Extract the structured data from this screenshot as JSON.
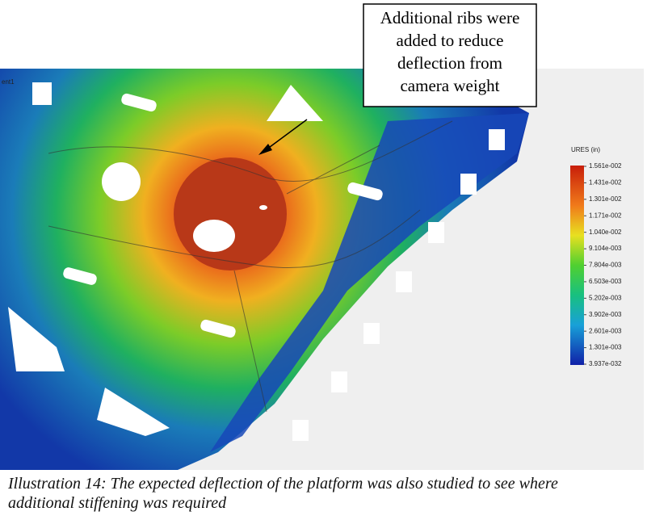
{
  "figure": {
    "view_label": "ent1",
    "callout": [
      "Additional ribs were",
      "added to reduce",
      "deflection from",
      "camera weight"
    ],
    "legend": {
      "title": "URES (in)",
      "labels": [
        "1.561e-002",
        "1.431e-002",
        "1.301e-002",
        "1.171e-002",
        "1.040e-002",
        "9.104e-003",
        "7.804e-003",
        "6.503e-003",
        "5.202e-003",
        "3.902e-003",
        "2.601e-003",
        "1.301e-003",
        "3.937e-032"
      ]
    }
  },
  "caption": [
    "Illustration 14: The expected deflection of the platform was also studied to see where",
    "additional stiffening was required"
  ]
}
